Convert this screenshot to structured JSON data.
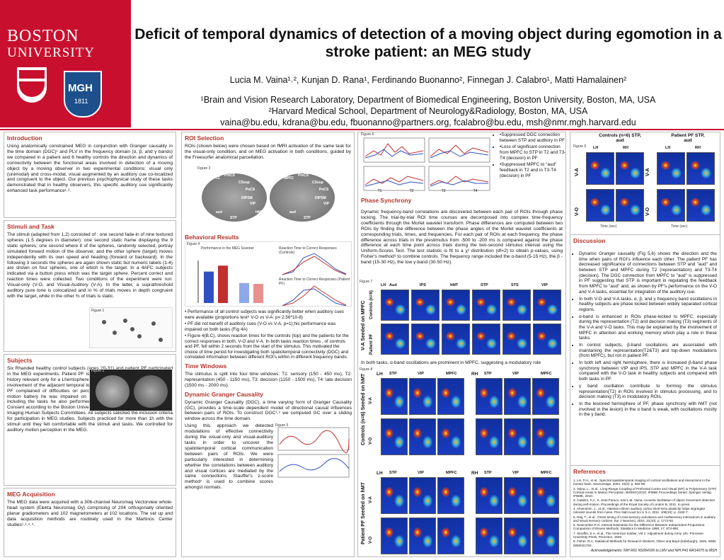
{
  "logos": {
    "bu_1": "BOSTON",
    "bu_2": "UNIVERSITY",
    "mgh": "MGH",
    "mgh_year": "1811"
  },
  "header": {
    "title": "Deficit of temporal dynamics of detection of a moving object during egomotion in a stroke patient: an MEG study",
    "authors": "Lucia M. Vaina¹˒², Kunjan D. Rana¹, Ferdinando Buonanno², Finnegan J. Calabro¹, Matti Hamalainen²",
    "affiliations": [
      "¹Brain and Vision Research Laboratory, Department of Biomedical Engineering, Boston University, Boston, MA, USA",
      "²Harvard Medical School, Department of Neurology&Radiology, Boston, MA, USA",
      "vaina@bu.edu, kdrana@bu.edu, fbuonanno@partners.org, fcalabro@bu.edu, msh@nmr.mgh.harvard.edu"
    ]
  },
  "introduction": {
    "heading": "Introduction",
    "text": "Using anatomically constrained MEG in conjunction with Granger causality in the time domain (DGC)¹ and PLV in the frequency domain (α, β, and γ bands) we compared in a patient and 6 healthy controls the direction and dynamics of connectivity between the functional areas involved in detection of a moving object by a moving observer in two experimental conditions: visual only (unimodal) and cross-modal, visual augmented by an auditory cue co-localized and congruent to the object. Our previous psychophysical study of these tasks demonstrated that in healthy observers, this specific auditory cue significantly enhanced task performance¹˒²."
  },
  "stimuli": {
    "heading": "Stimuli and Task",
    "figure": "Figure 1",
    "text": "The stimuli (adapted from 1,2) consisted of : one second fade-in of nine textured spheres (1.5 degrees in diameter); one second static frame displaying the 9 static spheres; one second where 8 of the spheres, randomly selected, portray simulated forward motion of the observer, and the other sphere (target) moves independently with its own speed and heading (forward or backward). In the following 3 seconds the spheres are again shown static but numeric labels (1-4) are shown on four spheres, one of which is the target. In a 4AFC subjects indicated via a button press which was the target sphere. Percent correct and reaction times were collected. Two conditions of the experiment were run: Visual-only (V-O, and Visual-Auditory (V-A). In the latter, a suprathreshold auditory pure tone is colocalized and in % of trials moves in depth congruent with the target, while in the other % of trials is static."
  },
  "subjects": {
    "heading": "Subjects",
    "figure": "Figure 2",
    "text": "Six Rhanded healthy control subjects (ages 20-31) and patient PF participated in the MEG experiments. Patient PF is a 48 y.o. R handed man, with medical history relevant only for a Lhemisphere infarct in the occipital lobe with minimal involvement of the adjacent temporal lobe (lesion area 3.5x1.4 cm area; Fig 2). PF complained of difficulties on perceiving visual motion. Testing with our motion battery he was impaired on several tasks (direction, discontinuity), including the tasks he also performed in MEG. All subjects gave Informed Consent according to the Boston University and Martinos Center for Biomedical Imaging Human Subjects Committees. All subjects satisfied the inclusion criteria for participation in MEG studies. Subjects practiced for more than 1h with the stimuli until they felt comfortable with the stimuli and tasks. We controlled for auditory motion perception in the MEG."
  },
  "meg": {
    "heading": "MEG Acquisition",
    "text": "The MEG data were acquired with a 306-channel Neuromag Vectorview whole-head system (Elekta Neuromag Oy) comprising of 204 orthogonally oriented planar gradiometers and 102 magnetometers at 102 locations. The set up and data acquisition methods are routinely used in the Martinos Center studies¹˒²˒⁴˒⁵."
  },
  "roi": {
    "heading": "ROI Selection",
    "figure": "Figure 3",
    "text": "ROIs (shown below) were chosen based on fMRI activation of the same task for the visual-only condition, and on MEG activation in both conditions, guided by the Freesurfer anatomical parcellation.",
    "labels": [
      "MPFC",
      "PreCS",
      "CSsup",
      "PoCS",
      "DIPSM",
      "VIP",
      "aud",
      "STP",
      "SIS",
      "hMT+",
      "MPFC",
      "PreCS",
      "CSsup",
      "PoCS",
      "DIPSM",
      "VIP",
      "aud",
      "STP",
      "SIS",
      "hMT+"
    ]
  },
  "behavioral": {
    "heading": "Behavioral Results",
    "figure": "Figure 4",
    "panel_a": {
      "title": "Performance in the MEG Scanner",
      "ylim": [
        0,
        100
      ],
      "values": [
        74,
        88,
        47,
        45
      ],
      "colors": [
        "#3050c0",
        "#c03030",
        "#8fa8e8",
        "#e89090"
      ]
    },
    "panel_b_title": "Reaction Time to Correct Responses (Controls)",
    "panel_c_title": "Reaction Time to Correct Responses (Patient PF)",
    "bullets": [
      "• Performance of all control subjects was significantly better when auditory cues were available (proportions test⁶ V-O vs V-A: p= 2.56*10-8)",
      "• PF did not benefit of auditory cues (V-O vs V-A, p=1);his performance was impaired on both tasks (Fig 4A)",
      "• Figure 4(B,C), shows reaction times for the controls (top) and the patients for the correct responses in both, V-O and V-A. In both tasks reaction times , of controls and PF, fell within 2 seconds from the start of the stimulus. This motivated the choice of time period for investigating both spatiotemporal connectivity (DGC) and correlated information between different ROI's within in different frequency bands."
    ]
  },
  "time_windows": {
    "heading": "Time Windows",
    "text": "The stimulus is split into four time windows: T1: sensory (150 - 450 ms), T2: representation (450 - 1150 ms), T3: decision (1150 - 1500 ms), T4: late decision (1500 ms - 2000 ms)."
  },
  "dgc": {
    "heading": "Dynamic Granger Causality",
    "figure": "Figure 5",
    "text_1": "Dynamic Granger Causality (DGC), a time varying form of Granger Causality (GC), provides a time-scale dependent model of directional causal influences between pairs of ROIs. To construct DGC¹˒² we computed GC over a sliding window across the time domain.",
    "text_2": "Using this approach we detected modulations of effective connectivity during the visual-only and visual-auditory tasks in order to uncover the spatiotemporal cortical communication between pairs of ROIs. We were particularly interested in determining whether the correlations between auditory and visual cortices are mediated by the same connections. Stauffer's z-score method⁷ is used to combine scores amongst normals."
  },
  "dgc_results": {
    "figure": "Figure 6",
    "time_windows": [
      "T1",
      "T2",
      "T3",
      "T4"
    ],
    "bullets": [
      "•Suppressed DGC connection between STP and auditory in PF",
      "•Loss of significant connection from MPFC to STP in T2 and T3-T4 (decision) in PF",
      "•Suppressed MPFC to \"aud\" feedback in T2 and in T3-T4 (decision) in PF"
    ]
  },
  "dgc_heatmaps": {
    "figure": "Figure 6",
    "groups": [
      "Controls (n=6) STP, aud",
      "Patient PF STP, aud"
    ],
    "hemispheres": [
      "LH",
      "RH"
    ],
    "conditions": [
      "V-A",
      "V-O"
    ]
  },
  "axis_time": "Time (sec)",
  "phase": {
    "heading": "Phase Synchrony",
    "text": "Dynamic frequency-band correlations are discovered between each pair of ROIs through phase locking. The trial-by-trial ROI time courses are decomposed into complex time-frequency coefficients through the Morlet wavelet transform. Phase differences are computed between two ROIs by finding the difference between the phase angles of the Morlet wavelet coefficients at corresponding trials, times, and frequencies. For each pair of ROIs at each frequency, the phase difference across trials in the prestimulus from -500 to -200 ms is compared against the phase difference at each time point across trials during the two-second stimulus interval using the Uniform-Scores Test. The test statistic is fit to a χ² distribution (df=2) to obtain p-values, using Fisher's method⁸ to combine controls. The frequency range included the α-band (5-15 Hz), the β -band (15-30 Hz), the low γ-band (30-50 Hz).",
    "caption": "In both tasks, α-band oscillations are prominent in MPFC, suggesting a modulatory role",
    "figure7": {
      "label": "Figure 7",
      "hemisphere": "LH",
      "columns": [
        "Aud",
        "IPS",
        "hMT",
        "STP",
        "STS",
        "VIP"
      ],
      "seed": "V-A Seeded on MPFC",
      "rows": [
        "Controls (n=6)",
        "Patient PF"
      ]
    },
    "figure8": {
      "label": "Figure 8",
      "hemispheres": [
        "LH",
        "RH"
      ],
      "columns": [
        "STP",
        "VIP",
        "MPFC"
      ],
      "conditions": [
        "V-A",
        "V-O"
      ],
      "rows": [
        "Controls (n=6) Seeded on hMT",
        "Patient PF Seeded on hMT"
      ]
    }
  },
  "discussion": {
    "heading": "Discussion",
    "bullets": [
      "Dynamic Granger causality (Fig 5,6) shows the direction and the time when pairs of ROI's influence each other. The patient PF has decreased significance of connections between STP and \"aud\" and between STP and MPFC during T2 (representation) and T3-T4 (decision). The DGC connection from MPFC to \"aud\" is suppressed in PF suggesting that STP is important in regulating the feedback from MPFC to \"aud\" and, as shown by PF's performance on the V-O and V-A tasks, essential for integration of the auditory cue.",
      "In both V-O and V-A tasks, α, β, and γ frequency band oscillations in healthy subjects are phase locked between widely separated cortical regions.",
      "α-band is enhanced in ROIs phase-locked to MPFC, especially during the representation (T2) and decision making (T3) segments of the V-A and V-O tasks. This may be explained by the involvement of MPFC in attention and working memory which play a role in these tasks.",
      "In control subjects, β-band oscillations are associated with maintaining the representation(T2&T3) and top-down modulations (from MPFC), but not in patient PF.",
      "In both left and right hemisphere, there is increased β-band phase synchrony between VIP and IPS, STP and MPFC in the V-A task compared with the V-O task in healthy subjects and compared with both tasks in PF.",
      "γ band oscillation contribute to forming the stimulus representation(T2) in ROIs involved in stimulus processing, and to decision making (T3) in modulatory ROIs.",
      "In the lesioned hemisphere of PF, phase synchrony with hMT (not involved in the lesion) in the α band is weak, with oscillations mostly in the γ band."
    ]
  },
  "references": {
    "heading": "References",
    "items": [
      "1. Lin, F.H., et al., Spectral spatiotemporal imaging of cortical oscillations and interactions in the human brain. Neuroimage, 2004. 23(2): p. 582-95.",
      "2. Vaina, L., et al., Long-Range Coupling of Prefrontal Cortex and Visual (MT) or Polysensory (STP) Cortical Areas in Motion Perception. BIOMAG2010. IFMBE Proceedings Series: Springer Verlag IFBME, 2010.",
      "3. Calabro, F.J., S. Soto-Faraco, and L.M. Vaina, Acoustic facilitation of object movement detection during self-motion. Proceedings of the Royal Society of London B, 2011. In press.",
      "4. Ahveninen, J., et al., Attention-driven auditory cortex short-term plasticity helps segregate relevant sounds from noise. Proc Natl Acad Sci U S A, 2011. 108(10): p. 4182-7.",
      "5. Raij, T., et al., Onset timing of cross-sensory activations and multisensory interactions in auditory and visual sensory cortices. Eur J Neurosci, 2010. 31(10): p. 1772-82.",
      "6. Newcombe R.G. Interval Estimation for the Difference Between Independent Proportions: Comparison of Eleven Methods. Statistics in Medicine 1998; 17: 873-890.",
      "7. Stouffer, S.A. et al., The American Soldier, Vol 1: Adjustment during Army Life. Princeton University Press, Princeton, 1949.",
      "8. Fisher, R.A. Statistical Methods for Research Workers. Oliver and Boyd (Edinburgh), 1925, ISBN 0050021702."
    ]
  },
  "acknowledgements": "Acknowledgements: NIH R01 NS064100 to LMV and NIH P41 RR14075 to MSH"
}
